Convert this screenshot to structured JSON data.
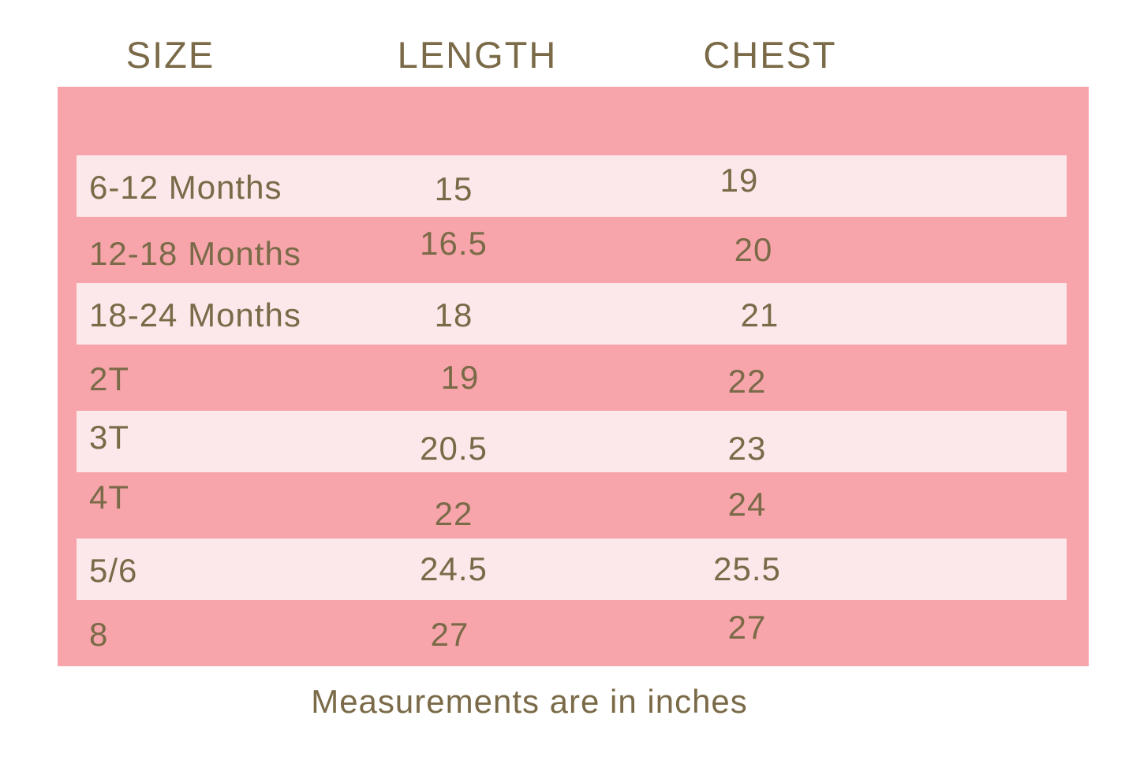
{
  "chart_data": {
    "type": "table",
    "columns": [
      "SIZE",
      "LENGTH",
      "CHEST"
    ],
    "rows": [
      [
        "6-12 Months",
        "15",
        "19"
      ],
      [
        "12-18 Months",
        "16.5",
        "20"
      ],
      [
        "18-24 Months",
        "18",
        "21"
      ],
      [
        "2T",
        "19",
        "22"
      ],
      [
        "3T",
        "20.5",
        "23"
      ],
      [
        "4T",
        "22",
        "24"
      ],
      [
        "5/6",
        "24.5",
        "25.5"
      ],
      [
        "8",
        "27",
        "27"
      ]
    ],
    "units": "inches"
  },
  "footer": {
    "note": "Measurements are in inches"
  },
  "colors": {
    "page_bg": "#ffffff",
    "table_bg": "#f7a5aa",
    "stripe_bg": "#fce7ea",
    "text": "#7a6a48"
  }
}
